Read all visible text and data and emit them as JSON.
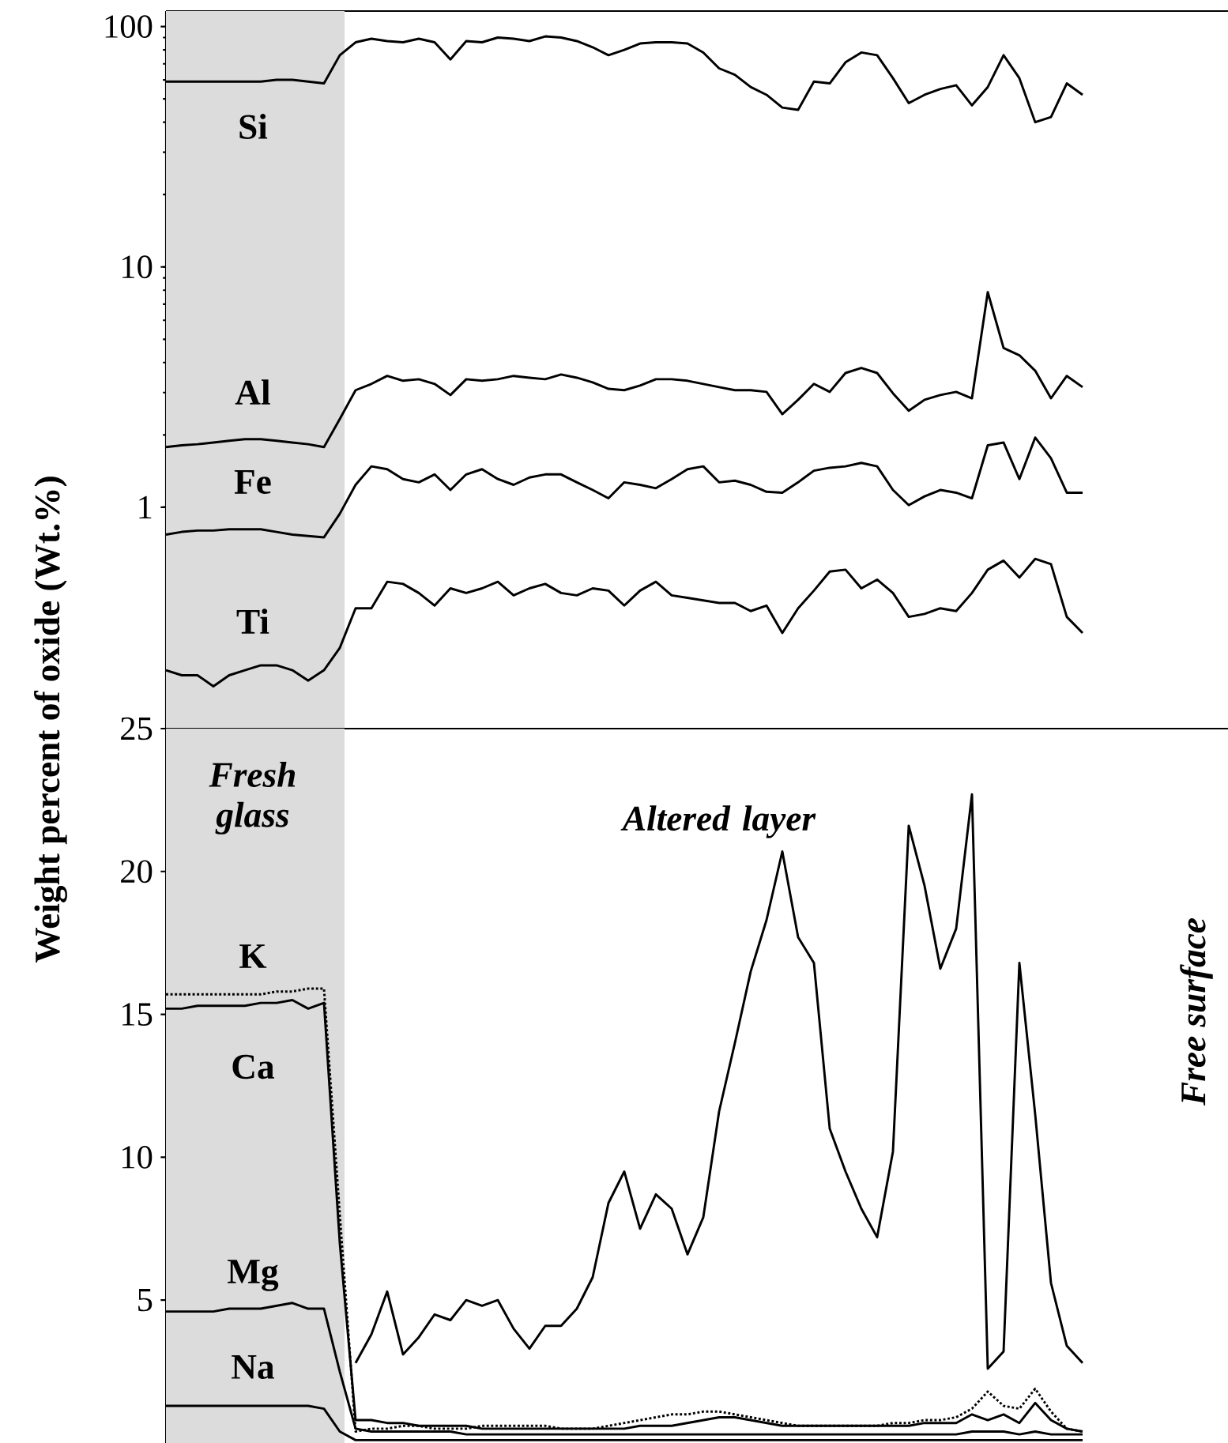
{
  "chart_data": [
    {
      "type": "line",
      "ylabel": "Weight percent of oxide (Wt.%)",
      "log": "y",
      "ylim": [
        0.12,
        116
      ],
      "yticks": [
        1,
        10,
        100
      ],
      "tick_labels": "y",
      "categories": [
        null,
        null,
        null,
        null,
        null,
        null,
        null,
        null,
        null,
        null,
        null,
        null,
        null,
        null,
        null,
        null,
        null,
        null,
        null,
        null,
        null,
        null,
        null,
        null,
        null,
        null,
        null,
        null,
        null,
        null,
        null,
        null,
        null,
        null,
        null,
        null,
        null,
        null,
        null,
        null,
        null,
        null,
        null,
        null,
        null,
        null,
        null,
        null,
        null,
        null,
        null,
        null,
        null,
        null,
        null,
        null,
        null,
        null,
        null
      ],
      "annotations": [
        "Si",
        "Al",
        "Fe",
        "Ti"
      ],
      "series": [
        {
          "color": "#000000",
          "values": [
            59,
            59,
            59,
            59,
            59,
            59,
            59,
            60,
            60,
            59,
            58,
            76,
            86,
            89,
            87,
            86,
            89,
            86,
            73,
            87,
            86,
            90,
            89,
            87,
            91,
            90,
            87,
            82,
            76,
            80,
            85,
            86,
            86,
            85,
            78,
            67,
            63,
            56,
            52,
            46,
            45,
            59,
            58,
            71,
            78,
            76,
            61,
            48,
            52,
            55,
            57,
            47,
            56,
            76,
            61,
            40,
            42,
            58,
            52
          ]
        },
        {
          "color": "#000000",
          "values": [
            1.78,
            1.81,
            1.83,
            1.86,
            1.89,
            1.92,
            1.92,
            1.89,
            1.86,
            1.83,
            1.78,
            2.33,
            3.07,
            3.26,
            3.52,
            3.36,
            3.41,
            3.26,
            2.93,
            3.41,
            3.36,
            3.41,
            3.52,
            3.46,
            3.41,
            3.57,
            3.46,
            3.31,
            3.11,
            3.07,
            3.21,
            3.41,
            3.41,
            3.36,
            3.26,
            3.16,
            3.07,
            3.07,
            3.02,
            2.44,
            2.8,
            3.26,
            3.02,
            3.62,
            3.8,
            3.62,
            2.98,
            2.52,
            2.8,
            2.93,
            3.02,
            2.84,
            7.85,
            4.6,
            4.29,
            3.7,
            2.84,
            3.52,
            3.16
          ]
        },
        {
          "color": "#000000",
          "values": [
            0.77,
            0.79,
            0.8,
            0.8,
            0.81,
            0.81,
            0.81,
            0.79,
            0.77,
            0.76,
            0.75,
            0.94,
            1.24,
            1.48,
            1.44,
            1.31,
            1.27,
            1.37,
            1.18,
            1.37,
            1.44,
            1.31,
            1.24,
            1.33,
            1.37,
            1.37,
            1.27,
            1.18,
            1.09,
            1.27,
            1.24,
            1.2,
            1.31,
            1.44,
            1.48,
            1.27,
            1.29,
            1.24,
            1.16,
            1.15,
            1.27,
            1.42,
            1.46,
            1.48,
            1.53,
            1.48,
            1.18,
            1.02,
            1.11,
            1.18,
            1.15,
            1.09,
            1.81,
            1.86,
            1.31,
            1.95,
            1.6,
            1.15,
            1.15
          ]
        },
        {
          "color": "#000000",
          "values": [
            0.21,
            0.2,
            0.2,
            0.18,
            0.2,
            0.21,
            0.22,
            0.22,
            0.21,
            0.19,
            0.21,
            0.26,
            0.38,
            0.38,
            0.49,
            0.48,
            0.44,
            0.39,
            0.46,
            0.44,
            0.46,
            0.49,
            0.43,
            0.46,
            0.48,
            0.44,
            0.43,
            0.46,
            0.45,
            0.39,
            0.45,
            0.49,
            0.43,
            0.42,
            0.41,
            0.4,
            0.4,
            0.37,
            0.39,
            0.3,
            0.38,
            0.45,
            0.54,
            0.55,
            0.46,
            0.5,
            0.44,
            0.35,
            0.36,
            0.38,
            0.37,
            0.44,
            0.55,
            0.6,
            0.51,
            0.61,
            0.58,
            0.35,
            0.3
          ]
        }
      ]
    },
    {
      "type": "line",
      "ylim": [
        0,
        25
      ],
      "yticks": [
        5,
        10,
        15,
        20,
        25
      ],
      "tick_labels": "y",
      "categories": [
        null,
        null,
        null,
        null,
        null,
        null,
        null,
        null,
        null,
        null,
        null,
        null,
        null,
        null,
        null,
        null,
        null,
        null,
        null,
        null,
        null,
        null,
        null,
        null,
        null,
        null,
        null,
        null,
        null,
        null,
        null,
        null,
        null,
        null,
        null,
        null,
        null,
        null,
        null,
        null,
        null,
        null,
        null,
        null,
        null,
        null,
        null,
        null,
        null,
        null,
        null,
        null,
        null,
        null,
        null,
        null,
        null,
        null,
        null
      ],
      "annotations": [
        "Fresh glass",
        "Altered layer",
        "K",
        "Ca",
        "Mg",
        "Na",
        "Free surface"
      ],
      "series": [
        {
          "color": "#000000",
          "values": [
            null,
            null,
            null,
            null,
            null,
            null,
            null,
            null,
            null,
            null,
            null,
            null,
            2.8,
            3.8,
            5.3,
            3.1,
            3.7,
            4.5,
            4.3,
            5.0,
            4.8,
            5.0,
            4.0,
            3.3,
            4.1,
            4.1,
            4.7,
            5.8,
            8.4,
            9.5,
            7.5,
            8.7,
            8.2,
            6.6,
            7.9,
            11.6,
            14.0,
            16.5,
            18.3,
            20.7,
            17.7,
            16.8,
            11.0,
            9.5,
            8.2,
            7.2,
            10.2,
            21.6,
            19.5,
            16.6,
            18.0,
            22.7,
            2.6,
            3.2,
            16.8,
            11.5,
            5.6,
            3.4,
            2.8
          ]
        },
        {
          "color": "#000000",
          "values": [
            15.2,
            15.2,
            15.3,
            15.3,
            15.3,
            15.3,
            15.4,
            15.4,
            15.5,
            15.2,
            15.4,
            7.0,
            0.8,
            0.8,
            0.7,
            0.7,
            0.6,
            0.6,
            0.6,
            0.6,
            0.5,
            0.5,
            0.5,
            0.5,
            0.5,
            0.5,
            0.5,
            0.5,
            0.5,
            0.5,
            0.6,
            0.6,
            0.6,
            0.7,
            0.8,
            0.9,
            0.9,
            0.8,
            0.7,
            0.6,
            0.6,
            0.6,
            0.6,
            0.6,
            0.6,
            0.6,
            0.6,
            0.6,
            0.7,
            0.7,
            0.7,
            1.0,
            0.8,
            1.0,
            0.7,
            1.4,
            0.8,
            0.5,
            0.4
          ]
        },
        {
          "color": "#000000",
          "line_style": "dotted",
          "values": [
            15.7,
            15.7,
            15.7,
            15.7,
            15.7,
            15.7,
            15.7,
            15.8,
            15.8,
            15.9,
            15.9,
            8.0,
            0.4,
            0.5,
            0.5,
            0.6,
            0.6,
            0.5,
            0.5,
            0.5,
            0.6,
            0.6,
            0.6,
            0.6,
            0.6,
            0.5,
            0.5,
            0.5,
            0.6,
            0.7,
            0.8,
            0.9,
            1.0,
            1.0,
            1.1,
            1.1,
            1.0,
            0.9,
            0.8,
            0.7,
            0.6,
            0.6,
            0.6,
            0.6,
            0.6,
            0.6,
            0.7,
            0.7,
            0.8,
            0.8,
            0.9,
            1.2,
            1.8,
            1.3,
            1.2,
            1.9,
            1.1,
            0.5,
            0.4
          ]
        },
        {
          "color": "#000000",
          "values": [
            4.6,
            4.6,
            4.6,
            4.6,
            4.7,
            4.7,
            4.7,
            4.8,
            4.9,
            4.7,
            4.7,
            2.5,
            0.5,
            0.4,
            0.4,
            0.4,
            0.4,
            0.4,
            0.4,
            0.3,
            0.3,
            0.3,
            0.3,
            0.3,
            0.3,
            0.3,
            0.3,
            0.3,
            0.3,
            0.3,
            0.3,
            0.3,
            0.3,
            0.3,
            0.3,
            0.3,
            0.3,
            0.3,
            0.3,
            0.3,
            0.3,
            0.3,
            0.3,
            0.3,
            0.3,
            0.3,
            0.3,
            0.3,
            0.3,
            0.3,
            0.3,
            0.4,
            0.4,
            0.4,
            0.3,
            0.4,
            0.3,
            0.3,
            0.3
          ]
        },
        {
          "color": "#000000",
          "values": [
            1.3,
            1.3,
            1.3,
            1.3,
            1.3,
            1.3,
            1.3,
            1.3,
            1.3,
            1.3,
            1.2,
            0.4,
            0.1,
            0.1,
            0.1,
            0.1,
            0.1,
            0.1,
            0.1,
            0.1,
            0.1,
            0.1,
            0.1,
            0.1,
            0.1,
            0.1,
            0.1,
            0.1,
            0.1,
            0.1,
            0.1,
            0.1,
            0.1,
            0.1,
            0.1,
            0.1,
            0.1,
            0.1,
            0.1,
            0.1,
            0.1,
            0.1,
            0.1,
            0.1,
            0.1,
            0.1,
            0.1,
            0.1,
            0.1,
            0.1,
            0.1,
            0.1,
            0.1,
            0.1,
            0.1,
            0.1,
            0.1,
            0.1,
            0.1
          ]
        }
      ]
    }
  ]
}
